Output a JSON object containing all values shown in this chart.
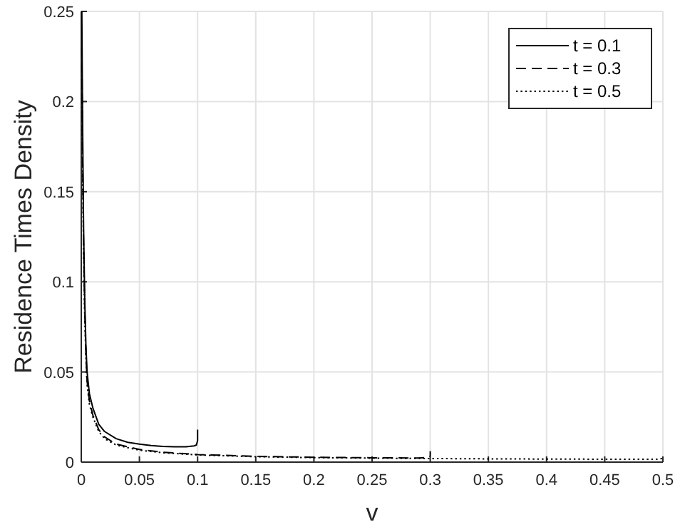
{
  "chart_data": {
    "type": "line",
    "xlabel": "v",
    "ylabel": "Residence Times Density",
    "xlim": [
      0,
      0.5
    ],
    "ylim": [
      0,
      0.25
    ],
    "xticks": [
      0,
      0.05,
      0.1,
      0.15,
      0.2,
      0.25,
      0.3,
      0.35,
      0.4,
      0.45,
      0.5
    ],
    "yticks": [
      0,
      0.05,
      0.1,
      0.15,
      0.2,
      0.25
    ],
    "grid": true,
    "legend": "top right",
    "series": [
      {
        "name": "t = 0.1",
        "color": "#000000",
        "line_style": "solid",
        "x": [
          0.0005,
          0.001,
          0.002,
          0.003,
          0.004,
          0.005,
          0.007,
          0.01,
          0.015,
          0.02,
          0.03,
          0.04,
          0.05,
          0.06,
          0.07,
          0.08,
          0.09,
          0.097,
          0.099,
          0.1,
          0.1
        ],
        "values": [
          0.25,
          0.2,
          0.13,
          0.09,
          0.065,
          0.05,
          0.038,
          0.03,
          0.021,
          0.017,
          0.013,
          0.011,
          0.01,
          0.0092,
          0.0087,
          0.0085,
          0.0085,
          0.009,
          0.0095,
          0.012,
          0.018
        ]
      },
      {
        "name": "t = 0.3",
        "color": "#000000",
        "line_style": "dashed",
        "x": [
          0.0005,
          0.001,
          0.002,
          0.003,
          0.004,
          0.005,
          0.007,
          0.01,
          0.015,
          0.02,
          0.03,
          0.04,
          0.05,
          0.07,
          0.1,
          0.15,
          0.2,
          0.25,
          0.29,
          0.299,
          0.3,
          0.3
        ],
        "values": [
          0.23,
          0.18,
          0.12,
          0.085,
          0.06,
          0.045,
          0.034,
          0.026,
          0.018,
          0.014,
          0.01,
          0.0085,
          0.007,
          0.0055,
          0.0042,
          0.0032,
          0.0027,
          0.0024,
          0.0023,
          0.0026,
          0.0035,
          0.006
        ]
      },
      {
        "name": "t = 0.5",
        "color": "#000000",
        "line_style": "dotted",
        "x": [
          0.0005,
          0.001,
          0.002,
          0.003,
          0.004,
          0.005,
          0.007,
          0.01,
          0.015,
          0.02,
          0.03,
          0.04,
          0.05,
          0.07,
          0.1,
          0.15,
          0.2,
          0.25,
          0.3,
          0.35,
          0.4,
          0.45,
          0.495,
          0.5,
          0.5
        ],
        "values": [
          0.22,
          0.17,
          0.115,
          0.08,
          0.058,
          0.043,
          0.032,
          0.025,
          0.017,
          0.013,
          0.0095,
          0.008,
          0.0066,
          0.0052,
          0.004,
          0.003,
          0.0025,
          0.0022,
          0.002,
          0.0018,
          0.0017,
          0.0016,
          0.0016,
          0.002,
          0.003
        ]
      }
    ]
  }
}
